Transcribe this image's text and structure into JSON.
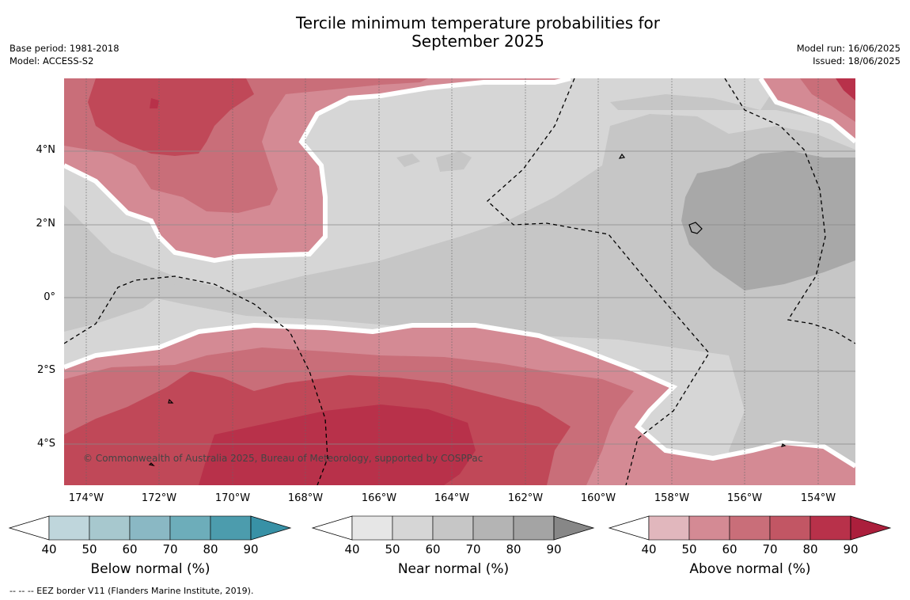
{
  "title": "Tercile minimum temperature probabilities for September 2025",
  "title_line1": "Tercile minimum temperature probabilities for",
  "title_line2": "September 2025",
  "base_period": "Base period: 1981-2018",
  "model": "Model: ACCESS-S2",
  "model_run": "Model run: 16/06/2025",
  "issued": "Issued: 18/06/2025",
  "copyright": "© Commonwealth of Australia 2025, Bureau of Meteorology, supported by COSPPac",
  "footnote": "--  --  -- EEZ border V11 (Flanders Marine Institute, 2019).",
  "lat_labels": [
    "4°N",
    "2°N",
    "0°",
    "2°S",
    "4°S"
  ],
  "lon_labels": [
    "174°W",
    "172°W",
    "170°W",
    "168°W",
    "166°W",
    "164°W",
    "162°W",
    "160°W",
    "158°W",
    "156°W",
    "154°W"
  ],
  "colorbars": [
    {
      "label": "Below normal (%)",
      "ticks": [
        "40",
        "50",
        "60",
        "70",
        "80",
        "90"
      ],
      "colors": [
        "#ffffff",
        "#bfd6dc",
        "#a7c8ce",
        "#8ab8c4",
        "#6dadba",
        "#4c9cad",
        "#3891a6"
      ]
    },
    {
      "label": "Near normal (%)",
      "ticks": [
        "40",
        "50",
        "60",
        "70",
        "80",
        "90"
      ],
      "colors": [
        "#ffffff",
        "#e6e6e6",
        "#d6d6d6",
        "#c6c6c6",
        "#b4b4b4",
        "#a4a4a4",
        "#878787"
      ]
    },
    {
      "label": "Above normal (%)",
      "ticks": [
        "40",
        "50",
        "60",
        "70",
        "80",
        "90"
      ],
      "colors": [
        "#ffffff",
        "#e1b7bd",
        "#d48a94",
        "#c96e79",
        "#c25664",
        "#b8314a",
        "#ab1f3c"
      ]
    }
  ],
  "colors": {
    "near_50_60": "#d6d6d6",
    "near_60_70": "#c6c6c6",
    "near_70_80": "#a8a8a8",
    "above_50_60": "#d48a94",
    "above_60_70": "#c96e79",
    "above_70_80": "#c04858",
    "above_80_90": "#b8314a"
  }
}
